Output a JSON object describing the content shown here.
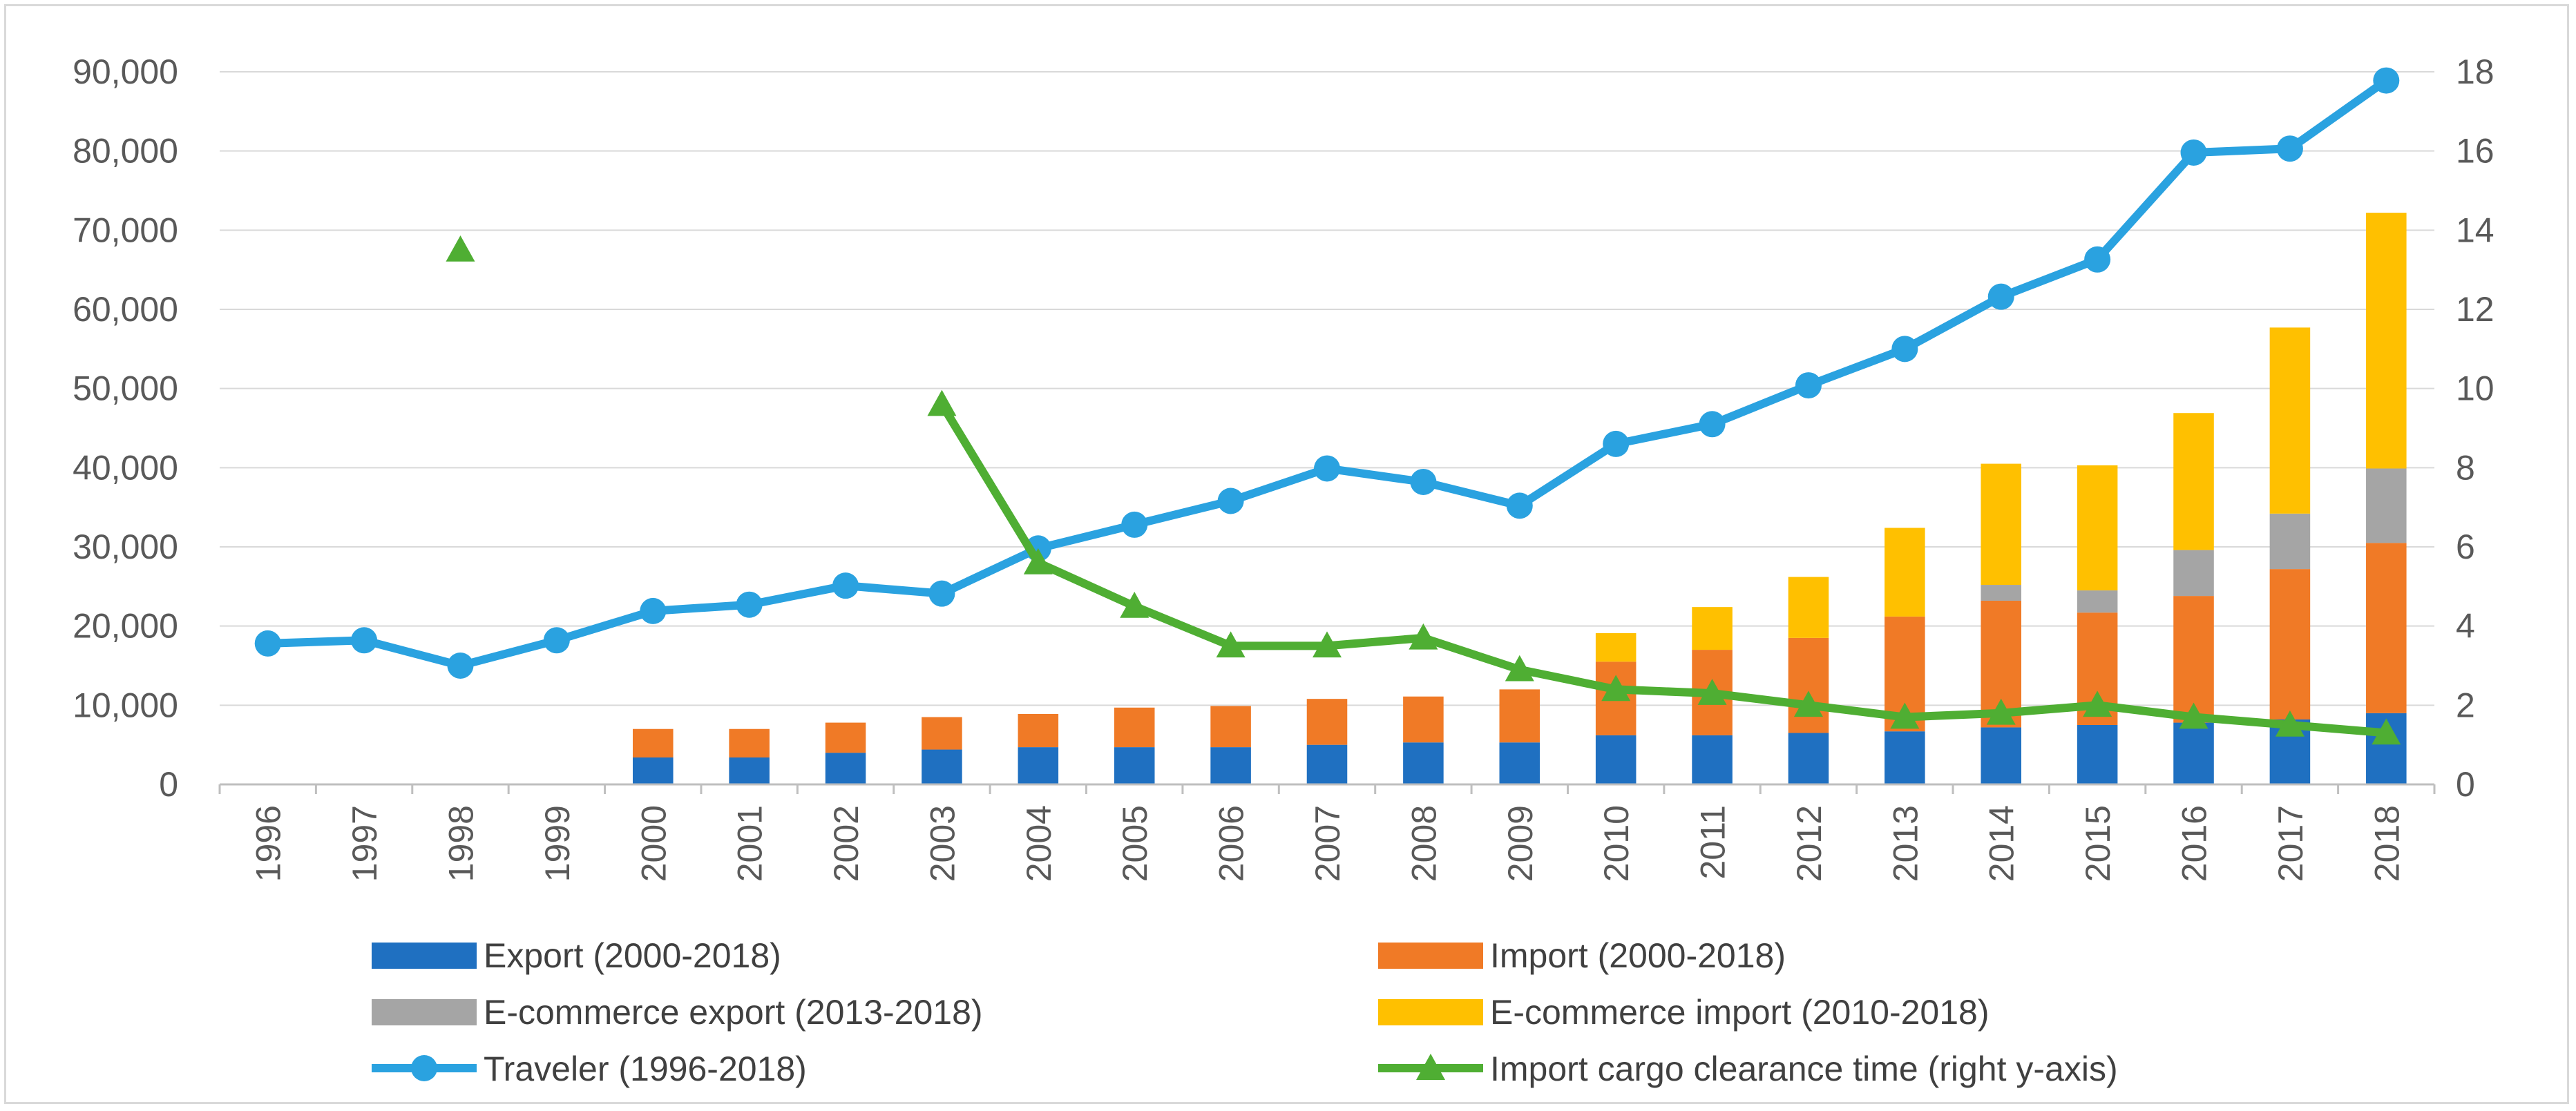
{
  "chart_data": {
    "type": "bar",
    "stacked": true,
    "categories": [
      "1996",
      "1997",
      "1998",
      "1999",
      "2000",
      "2001",
      "2002",
      "2003",
      "2004",
      "2005",
      "2006",
      "2007",
      "2008",
      "2009",
      "2010",
      "2011",
      "2012",
      "2013",
      "2014",
      "2015",
      "2016",
      "2017",
      "2018"
    ],
    "left_axis": {
      "ylim": [
        0,
        90000
      ],
      "ticks": [
        "0",
        "10,000",
        "20,000",
        "30,000",
        "40,000",
        "50,000",
        "60,000",
        "70,000",
        "80,000",
        "90,000"
      ]
    },
    "right_axis": {
      "ylim": [
        0,
        18
      ],
      "ticks": [
        "0",
        "2",
        "4",
        "6",
        "8",
        "10",
        "12",
        "14",
        "16",
        "18"
      ]
    },
    "grid": true,
    "legend_position": "bottom",
    "series": [
      {
        "name": "Export (2000-2018)",
        "type": "bar",
        "axis": "left",
        "color": "#1f70c1",
        "values": [
          null,
          null,
          null,
          null,
          3400,
          3400,
          4000,
          4400,
          4700,
          4700,
          4700,
          5000,
          5300,
          5300,
          6200,
          6200,
          6500,
          6700,
          7200,
          7500,
          7800,
          8200,
          9000
        ]
      },
      {
        "name": "Import (2000-2018)",
        "type": "bar",
        "axis": "left",
        "color": "#f07a26",
        "values": [
          null,
          null,
          null,
          null,
          3600,
          3600,
          3800,
          4100,
          4200,
          5000,
          5200,
          5800,
          5800,
          6700,
          9300,
          10800,
          12000,
          14500,
          16000,
          14200,
          16000,
          19000,
          21500
        ]
      },
      {
        "name": "E-commerce export (2013-2018)",
        "type": "bar",
        "axis": "left",
        "color": "#a5a5a5",
        "values": [
          null,
          null,
          null,
          null,
          null,
          null,
          null,
          null,
          null,
          null,
          null,
          null,
          null,
          null,
          null,
          null,
          null,
          0,
          2000,
          2800,
          5800,
          7000,
          9400
        ]
      },
      {
        "name": "E-commerce import (2010-2018)",
        "type": "bar",
        "axis": "left",
        "color": "#ffc000",
        "values": [
          null,
          null,
          null,
          null,
          null,
          null,
          null,
          null,
          null,
          null,
          null,
          null,
          null,
          null,
          3600,
          5400,
          7700,
          11200,
          15300,
          15800,
          17300,
          23500,
          32300
        ]
      },
      {
        "name": "Traveler (1996-2018)",
        "type": "line",
        "axis": "left",
        "color": "#2aa2e0",
        "marker": "circle",
        "values": [
          17800,
          18200,
          15000,
          18200,
          21900,
          22700,
          25100,
          24100,
          29800,
          32800,
          35800,
          39900,
          38200,
          35200,
          43000,
          45500,
          50400,
          55000,
          61600,
          66300,
          79800,
          80300,
          88900
        ]
      },
      {
        "name": "Import cargo clearance time (right y-axis)",
        "type": "line",
        "axis": "right",
        "color": "#4fae33",
        "marker": "triangle",
        "values": [
          null,
          null,
          13.5,
          null,
          null,
          null,
          null,
          9.6,
          5.6,
          4.5,
          3.5,
          3.5,
          3.7,
          2.9,
          2.4,
          2.3,
          2.0,
          1.7,
          1.8,
          2.0,
          1.7,
          1.5,
          1.3
        ]
      }
    ]
  }
}
